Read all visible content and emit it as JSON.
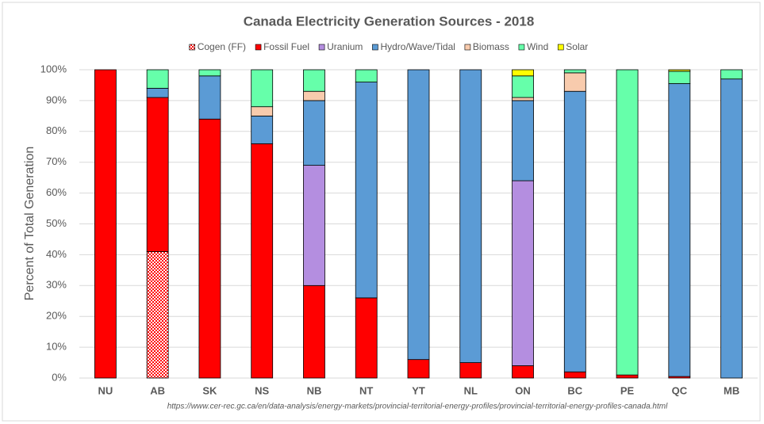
{
  "chart_data": {
    "type": "stacked_bar",
    "title": "Canada Electricity Generation Sources - 2018",
    "y_label": "Percent of Total Generation",
    "source": "https://www.cer-rec.gc.ca/en/data-analysis/energy-markets/provincial-territorial-energy-profiles/provincial-territorial-energy-profiles-canada.html",
    "categories": [
      "NU",
      "AB",
      "SK",
      "NS",
      "NB",
      "NT",
      "YT",
      "NL",
      "ON",
      "BC",
      "PE",
      "QC",
      "MB"
    ],
    "series": [
      {
        "name": "Cogen (FF)",
        "color": "#ff0000",
        "pattern": "checker",
        "values": [
          0,
          41,
          0,
          0,
          0,
          0,
          0,
          0,
          0,
          0,
          0,
          0,
          0
        ]
      },
      {
        "name": "Fossil Fuel",
        "color": "#ff0000",
        "values": [
          100,
          50,
          84,
          76,
          30,
          26,
          6,
          5,
          4,
          2,
          1,
          0.5,
          0
        ]
      },
      {
        "name": "Uranium",
        "color": "#b48ee0",
        "values": [
          0,
          0,
          0,
          0,
          39,
          0,
          0,
          0,
          60,
          0,
          0,
          0,
          0
        ]
      },
      {
        "name": "Hydro/Wave/Tidal",
        "color": "#5b9bd5",
        "values": [
          0,
          3,
          14,
          9,
          21,
          70,
          94,
          95,
          26,
          91,
          0,
          95,
          97
        ]
      },
      {
        "name": "Biomass",
        "color": "#f8cbad",
        "values": [
          0,
          0,
          0,
          3,
          3,
          0,
          0,
          0,
          1,
          6,
          0,
          0,
          0
        ]
      },
      {
        "name": "Wind",
        "color": "#66ffaa",
        "values": [
          0,
          6,
          2,
          12,
          7,
          4,
          0,
          0,
          7,
          1,
          99,
          4,
          3
        ]
      },
      {
        "name": "Solar",
        "color": "#ffff00",
        "values": [
          0,
          0,
          0,
          0,
          0,
          0,
          0,
          0,
          2,
          0,
          0,
          0.5,
          0
        ]
      }
    ],
    "ylim": [
      0,
      100
    ],
    "yticks": [
      {
        "value": 0,
        "label": "0%"
      },
      {
        "value": 10,
        "label": "10%"
      },
      {
        "value": 20,
        "label": "20%"
      },
      {
        "value": 30,
        "label": "30%"
      },
      {
        "value": 40,
        "label": "40%"
      },
      {
        "value": 50,
        "label": "50%"
      },
      {
        "value": 60,
        "label": "60%"
      },
      {
        "value": 70,
        "label": "70%"
      },
      {
        "value": 80,
        "label": "80%"
      },
      {
        "value": 90,
        "label": "90%"
      },
      {
        "value": 100,
        "label": "100%"
      }
    ],
    "grid": true
  }
}
